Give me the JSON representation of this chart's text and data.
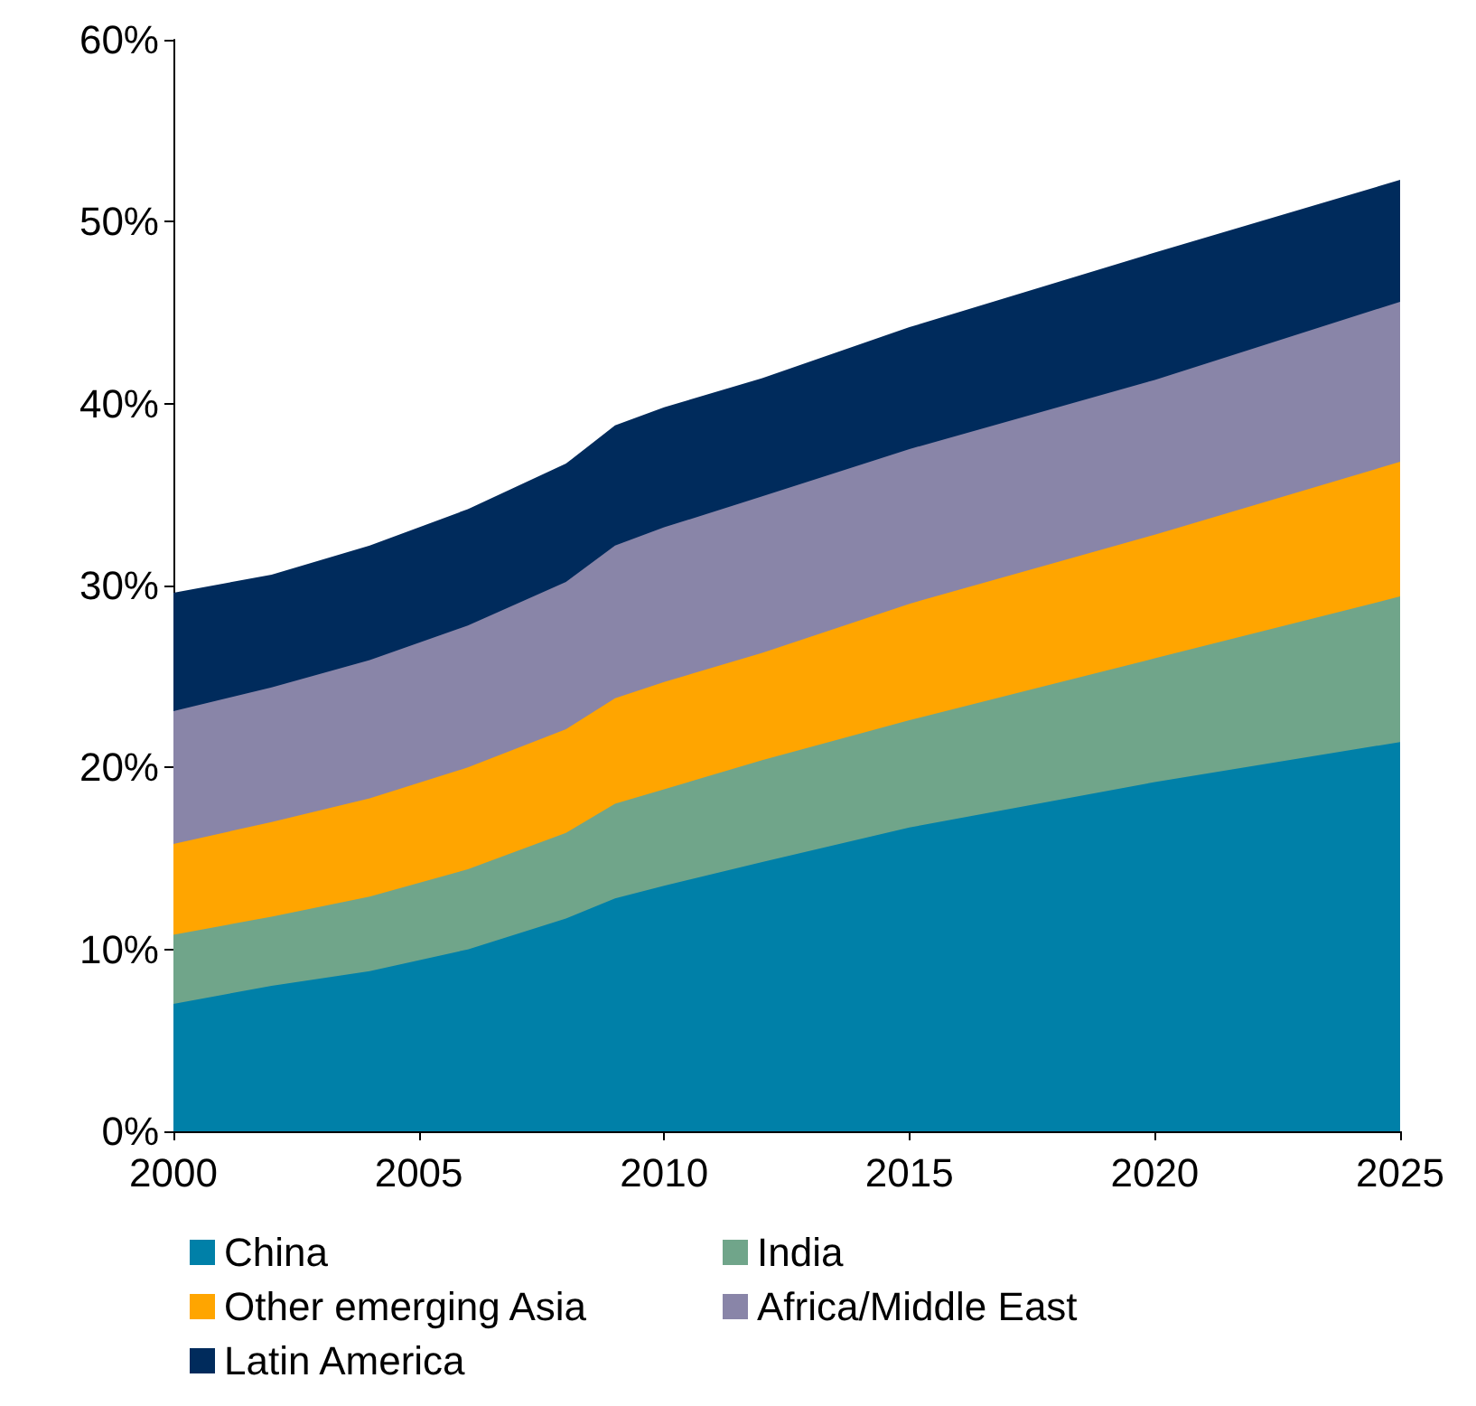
{
  "chart_data": {
    "type": "area",
    "stacked": true,
    "x": [
      2000,
      2002,
      2004,
      2006,
      2008,
      2009,
      2010,
      2012,
      2015,
      2020,
      2025
    ],
    "series": [
      {
        "name": "China",
        "color": "#0080a8",
        "values": [
          7.0,
          8.0,
          8.8,
          10.0,
          11.7,
          12.8,
          13.5,
          14.8,
          16.7,
          19.2,
          21.4
        ]
      },
      {
        "name": "India",
        "color": "#70a58a",
        "values": [
          3.8,
          3.8,
          4.1,
          4.4,
          4.7,
          5.2,
          5.3,
          5.6,
          5.9,
          6.8,
          8.0
        ]
      },
      {
        "name": "Other emerging Asia",
        "color": "#ffa500",
        "values": [
          5.0,
          5.2,
          5.4,
          5.6,
          5.7,
          5.8,
          5.9,
          5.9,
          6.4,
          6.8,
          7.4
        ]
      },
      {
        "name": "Africa/Middle East",
        "color": "#8985a8",
        "values": [
          7.3,
          7.4,
          7.6,
          7.8,
          8.1,
          8.4,
          8.5,
          8.6,
          8.5,
          8.5,
          8.8
        ]
      },
      {
        "name": "Latin America",
        "color": "#002b5c",
        "values": [
          6.5,
          6.2,
          6.3,
          6.4,
          6.5,
          6.6,
          6.6,
          6.5,
          6.7,
          7.0,
          6.7
        ]
      }
    ],
    "xlim": [
      2000,
      2025
    ],
    "xticks": [
      2000,
      2005,
      2010,
      2015,
      2020,
      2025
    ],
    "ylim": [
      0,
      60
    ],
    "yticks": [
      {
        "value": 0,
        "label": "0%"
      },
      {
        "value": 10,
        "label": "10%"
      },
      {
        "value": 20,
        "label": "20%"
      },
      {
        "value": 30,
        "label": "30%"
      },
      {
        "value": 40,
        "label": "40%"
      },
      {
        "value": 50,
        "label": "50%"
      },
      {
        "value": 60,
        "label": "60%"
      }
    ],
    "grid": false,
    "legend": "bottom"
  }
}
